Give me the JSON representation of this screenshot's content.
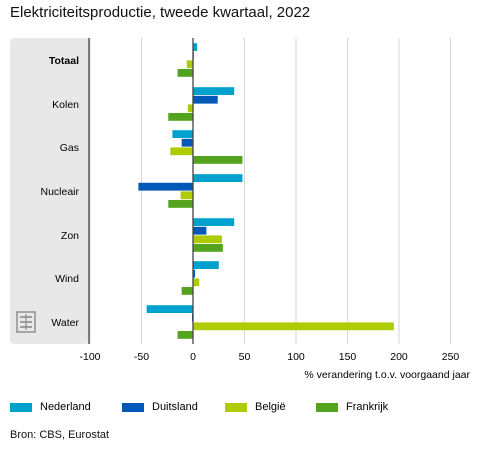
{
  "title": "Elektriciteitsproductie, tweede kwartaal, 2022",
  "source": "Bron: CBS, Eurostat",
  "logo_icon": "cbs-logo-icon",
  "chart_data": {
    "type": "bar",
    "orientation": "horizontal",
    "title": "Elektriciteitsproductie, tweede kwartaal, 2022",
    "xlabel": "% verandering t.o.v. voorgaand jaar",
    "ylabel": "",
    "xlim": [
      -100,
      260
    ],
    "xticks": [
      -100,
      -50,
      0,
      50,
      100,
      150,
      200,
      250
    ],
    "grid": true,
    "legend": "bottom",
    "categories": [
      "Totaal",
      "Kolen",
      "Gas",
      "Nucleair",
      "Zon",
      "Wind",
      "Water"
    ],
    "bold_categories": [
      "Totaal"
    ],
    "series": [
      {
        "name": "Nederland",
        "color": "#00a1cd",
        "values": [
          4,
          40,
          -20,
          48,
          40,
          25,
          -45
        ]
      },
      {
        "name": "Duitsland",
        "color": "#0058b8",
        "values": [
          0,
          24,
          -11,
          -53,
          13,
          2,
          -1
        ]
      },
      {
        "name": "België",
        "color": "#afcb05",
        "values": [
          -6,
          -5,
          -22,
          -12,
          28,
          6,
          195
        ]
      },
      {
        "name": "Frankrijk",
        "color": "#53a31d",
        "values": [
          -15,
          -24,
          48,
          -24,
          29,
          -11,
          -15
        ]
      }
    ]
  }
}
